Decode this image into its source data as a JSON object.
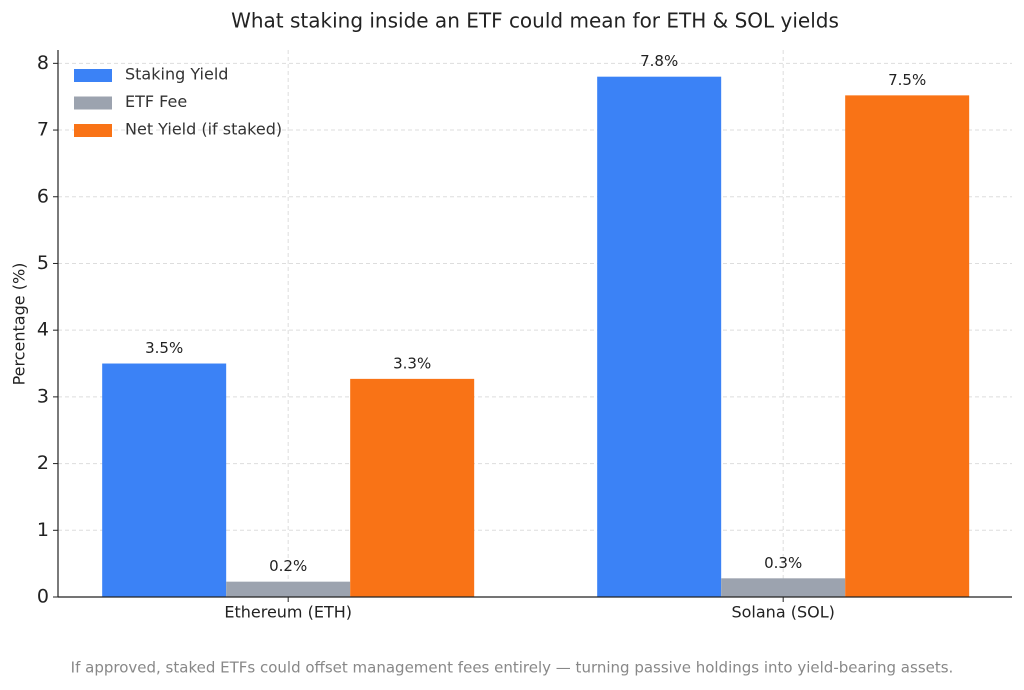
{
  "chart_data": {
    "type": "bar",
    "title": "What staking inside an ETF could mean for ETH & SOL yields",
    "ylabel": "Percentage (%)",
    "categories": [
      "Ethereum (ETH)",
      "Solana (SOL)"
    ],
    "series": [
      {
        "name": "Staking Yield",
        "color": "#3b82f6",
        "values": [
          3.5,
          7.8
        ],
        "value_labels": [
          "3.5%",
          "7.8%"
        ]
      },
      {
        "name": "ETF Fee",
        "color": "#9ca3af",
        "values": [
          0.23,
          0.28
        ],
        "value_labels": [
          "0.2%",
          "0.3%"
        ]
      },
      {
        "name": "Net Yield (if staked)",
        "color": "#f97316",
        "values": [
          3.27,
          7.52
        ],
        "value_labels": [
          "3.3%",
          "7.5%"
        ]
      }
    ],
    "ylim": [
      0,
      8.2
    ],
    "yticks": [
      0,
      1,
      2,
      3,
      4,
      5,
      6,
      7,
      8
    ],
    "grid": true,
    "legend": "upper-left",
    "caption": "If approved, staked ETFs could offset management fees entirely — turning passive holdings into yield-bearing assets."
  }
}
